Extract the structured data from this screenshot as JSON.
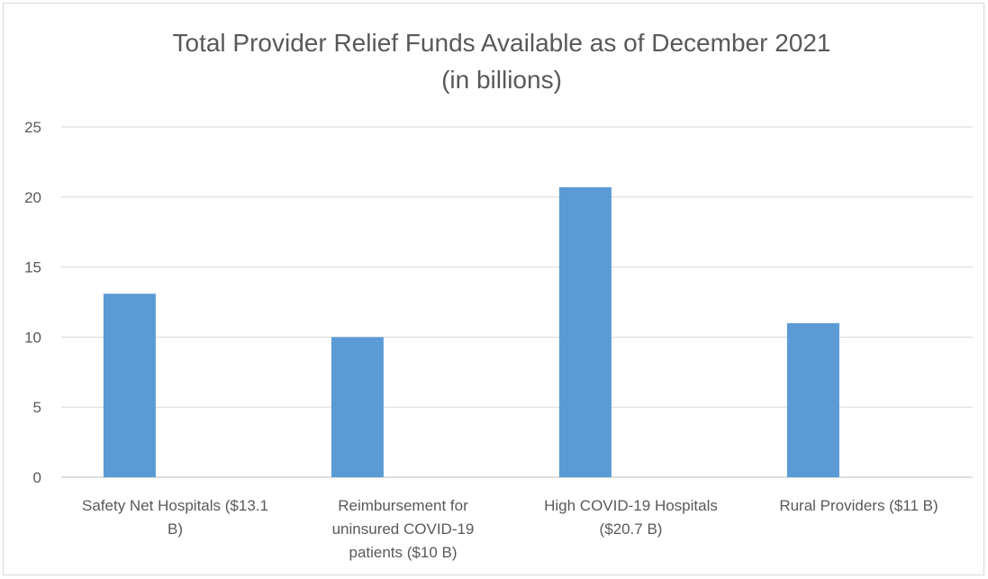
{
  "chart_data": {
    "type": "bar",
    "title": "Total Provider Relief Funds Available as of December 2021",
    "subtitle": "(in billions)",
    "categories": [
      [
        "Safety Net Hospitals ($13.1",
        "B)"
      ],
      [
        "Reimbursement for",
        "uninsured COVID-19",
        "patients ($10 B)"
      ],
      [
        "High COVID-19 Hospitals",
        "($20.7 B)"
      ],
      [
        "Rural Providers ($11 B)"
      ]
    ],
    "values": [
      13.1,
      10,
      20.7,
      11
    ],
    "ylim": [
      0,
      25
    ],
    "yticks": [
      "0",
      "5",
      "10",
      "15",
      "20",
      "25"
    ],
    "grid": true,
    "bar_color": "#5b9bd5"
  }
}
